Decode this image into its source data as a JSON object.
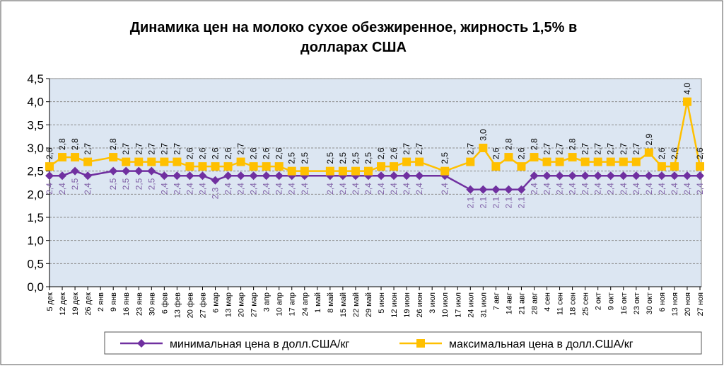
{
  "chart_data": {
    "type": "line",
    "title": "Динамика цен на молоко сухое обезжиренное, жирность 1,5%  в долларах США",
    "title_lines": [
      "Динамика цен на молоко сухое обезжиренное, жирность 1,5%  в",
      "долларах США"
    ],
    "xlabel": "",
    "ylabel": "",
    "ylim": [
      0,
      4.5
    ],
    "yticks": [
      "0,0",
      "0,5",
      "1,0",
      "1,5",
      "2,0",
      "2,5",
      "3,0",
      "3,5",
      "4,0",
      "4,5"
    ],
    "grid": true,
    "legend_position": "bottom",
    "categories": [
      "5 дек",
      "12 дек",
      "19 дек",
      "26 дек",
      "2 янв",
      "9 янв",
      "16 янв",
      "23 янв",
      "30 янв",
      "6 фев",
      "13 фев",
      "20 фев",
      "27 фев",
      "6 мар",
      "13 мар",
      "20 мар",
      "27 мар",
      "3 апр",
      "10 апр",
      "17 апр",
      "24 апр",
      "1 май",
      "8 май",
      "15 май",
      "22 май",
      "29 май",
      "5 июн",
      "12 июн",
      "19 июн",
      "26 июн",
      "3 июл",
      "10 июл",
      "17 июл",
      "24 июл",
      "31 июл",
      "7 авг",
      "14 авг",
      "21 авг",
      "28 авг",
      "4 сен",
      "11 сен",
      "18 сен",
      "25 сен",
      "2 окт",
      "9 окт",
      "16 окт",
      "23 окт",
      "30 окт",
      "6 ноя",
      "13 ноя",
      "20 ноя",
      "27 ноя"
    ],
    "series": [
      {
        "name": "минимальная цена в долл.США/кг",
        "color": "#7030a0",
        "marker": "diamond",
        "values": [
          2.4,
          2.4,
          2.5,
          2.4,
          null,
          2.5,
          2.5,
          2.5,
          2.5,
          2.4,
          2.4,
          2.4,
          2.4,
          2.3,
          2.4,
          2.4,
          2.4,
          2.4,
          2.4,
          2.4,
          2.4,
          null,
          2.4,
          2.4,
          2.4,
          2.4,
          2.4,
          2.4,
          2.4,
          2.4,
          null,
          2.4,
          null,
          2.1,
          2.1,
          2.1,
          2.1,
          2.1,
          2.4,
          2.4,
          2.4,
          2.4,
          2.4,
          2.4,
          2.4,
          2.4,
          2.4,
          2.4,
          2.4,
          2.4,
          2.4,
          2.4
        ]
      },
      {
        "name": "максимальная цена в долл.США/кг",
        "color": "#ffc000",
        "marker": "square",
        "values": [
          2.6,
          2.8,
          2.8,
          2.7,
          null,
          2.8,
          2.7,
          2.7,
          2.7,
          2.7,
          2.7,
          2.6,
          2.6,
          2.6,
          2.6,
          2.7,
          2.6,
          2.6,
          2.6,
          2.5,
          2.5,
          null,
          2.5,
          2.5,
          2.5,
          2.5,
          2.6,
          2.6,
          2.7,
          2.7,
          null,
          2.5,
          null,
          2.7,
          3.0,
          2.6,
          2.8,
          2.6,
          2.8,
          2.7,
          2.7,
          2.8,
          2.7,
          2.7,
          2.7,
          2.7,
          2.7,
          2.9,
          2.6,
          2.6,
          4.0,
          2.6
        ]
      }
    ]
  }
}
